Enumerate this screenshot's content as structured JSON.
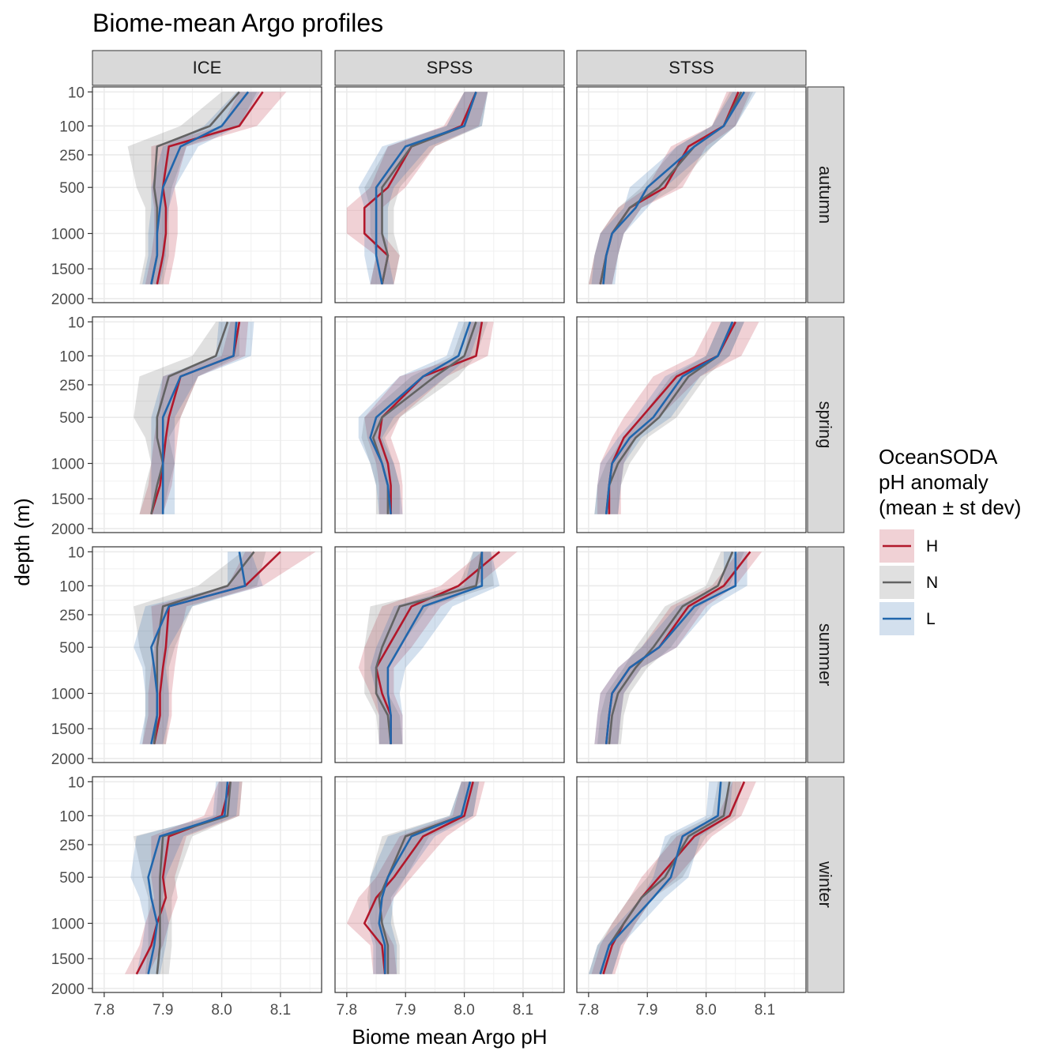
{
  "chart_data": {
    "type": "line",
    "title": "Biome-mean Argo profiles",
    "xlabel": "Biome mean Argo pH",
    "ylabel": "depth (m)",
    "xlim": [
      7.78,
      8.17
    ],
    "x_ticks": [
      7.8,
      7.9,
      8.0,
      8.1
    ],
    "x_tick_labels": [
      "7.8",
      "7.9",
      "8.0",
      "8.1"
    ],
    "y_scale": "sqrt",
    "y_reversed": true,
    "y_ticks": [
      10,
      100,
      250,
      500,
      1000,
      1500,
      2000
    ],
    "y_tick_labels": [
      "10",
      "100",
      "250",
      "500",
      "1000",
      "1500",
      "2000"
    ],
    "depths": [
      10,
      100,
      200,
      500,
      700,
      1000,
      1300,
      1750
    ],
    "columns": [
      "ICE",
      "SPSS",
      "STSS"
    ],
    "rows": [
      "autumn",
      "spring",
      "summer",
      "winter"
    ],
    "legend": {
      "title_lines": [
        "OceanSODA",
        "pH anomaly",
        "(mean ± st dev)"
      ],
      "entries": [
        {
          "name": "H",
          "color": "#b2182b"
        },
        {
          "name": "N",
          "color": "#636363"
        },
        {
          "name": "L",
          "color": "#2166ac"
        }
      ],
      "position": "right"
    },
    "panels": [
      {
        "column": "ICE",
        "row": "autumn",
        "series": [
          {
            "name": "H",
            "values": [
              8.07,
              8.03,
              7.91,
              7.9,
              7.905,
              7.905,
              7.9,
              7.89
            ],
            "sd": [
              0.04,
              0.03,
              0.03,
              0.02,
              0.02,
              0.02,
              0.02,
              0.02
            ]
          },
          {
            "name": "N",
            "values": [
              8.03,
              7.98,
              7.89,
              7.885,
              7.89,
              7.89,
              7.89,
              7.88
            ],
            "sd": [
              0.03,
              0.05,
              0.05,
              0.03,
              0.02,
              0.02,
              0.02,
              0.02
            ]
          },
          {
            "name": "L",
            "values": [
              8.045,
              8.0,
              7.93,
              7.9,
              7.895,
              7.89,
              7.89,
              7.88
            ],
            "sd": [
              0.02,
              0.03,
              0.03,
              0.02,
              0.015,
              0.015,
              0.015,
              0.015
            ]
          }
        ]
      },
      {
        "column": "SPSS",
        "row": "autumn",
        "series": [
          {
            "name": "H",
            "values": [
              8.02,
              7.995,
              7.91,
              7.87,
              7.83,
              7.83,
              7.87,
              7.86
            ],
            "sd": [
              0.02,
              0.03,
              0.04,
              0.03,
              0.03,
              0.03,
              0.02,
              0.02
            ]
          },
          {
            "name": "N",
            "values": [
              8.02,
              8.0,
              7.91,
              7.86,
              7.86,
              7.86,
              7.87,
              7.86
            ],
            "sd": [
              0.02,
              0.03,
              0.04,
              0.03,
              0.02,
              0.02,
              0.02,
              0.02
            ]
          },
          {
            "name": "L",
            "values": [
              8.02,
              8.0,
              7.9,
              7.85,
              7.85,
              7.85,
              7.85,
              7.86
            ],
            "sd": [
              0.02,
              0.03,
              0.04,
              0.03,
              0.02,
              0.02,
              0.02,
              0.02
            ]
          }
        ]
      },
      {
        "column": "STSS",
        "row": "autumn",
        "series": [
          {
            "name": "H",
            "values": [
              8.055,
              8.03,
              7.97,
              7.93,
              7.87,
              7.84,
              7.83,
              7.82
            ],
            "sd": [
              0.02,
              0.02,
              0.03,
              0.03,
              0.02,
              0.02,
              0.02,
              0.02
            ]
          },
          {
            "name": "N",
            "values": [
              8.06,
              8.03,
              7.98,
              7.92,
              7.87,
              7.84,
              7.83,
              7.82
            ],
            "sd": [
              0.02,
              0.02,
              0.03,
              0.03,
              0.02,
              0.02,
              0.02,
              0.02
            ]
          },
          {
            "name": "L",
            "values": [
              8.065,
              8.03,
              7.98,
              7.9,
              7.88,
              7.84,
              7.83,
              7.825
            ],
            "sd": [
              0.02,
              0.02,
              0.03,
              0.03,
              0.02,
              0.02,
              0.02,
              0.02
            ]
          }
        ]
      },
      {
        "column": "ICE",
        "row": "spring",
        "series": [
          {
            "name": "H",
            "values": [
              8.03,
              8.02,
              7.93,
              7.91,
              7.905,
              7.9,
              7.895,
              7.88
            ],
            "sd": [
              0.015,
              0.02,
              0.03,
              0.02,
              0.02,
              0.02,
              0.02,
              0.02
            ]
          },
          {
            "name": "N",
            "values": [
              8.01,
              7.99,
              7.91,
              7.89,
              7.89,
              7.9,
              7.89,
              7.88
            ],
            "sd": [
              0.02,
              0.04,
              0.05,
              0.04,
              0.02,
              0.02,
              0.02,
              0.02
            ]
          },
          {
            "name": "L",
            "values": [
              8.025,
              8.02,
              7.93,
              7.9,
              7.9,
              7.9,
              7.9,
              7.9
            ],
            "sd": [
              0.03,
              0.03,
              0.03,
              0.02,
              0.02,
              0.02,
              0.02,
              0.02
            ]
          }
        ]
      },
      {
        "column": "SPSS",
        "row": "spring",
        "series": [
          {
            "name": "H",
            "values": [
              8.03,
              8.02,
              7.93,
              7.86,
              7.855,
              7.87,
              7.875,
              7.875
            ],
            "sd": [
              0.02,
              0.02,
              0.04,
              0.03,
              0.02,
              0.02,
              0.02,
              0.02
            ]
          },
          {
            "name": "N",
            "values": [
              8.02,
              8.0,
              7.95,
              7.86,
              7.845,
              7.86,
              7.87,
              7.87
            ],
            "sd": [
              0.02,
              0.02,
              0.04,
              0.03,
              0.02,
              0.02,
              0.02,
              0.02
            ]
          },
          {
            "name": "L",
            "values": [
              8.01,
              7.99,
              7.93,
              7.85,
              7.84,
              7.86,
              7.87,
              7.875
            ],
            "sd": [
              0.02,
              0.02,
              0.04,
              0.03,
              0.02,
              0.02,
              0.02,
              0.02
            ]
          }
        ]
      },
      {
        "column": "STSS",
        "row": "spring",
        "series": [
          {
            "name": "H",
            "values": [
              8.05,
              8.02,
              7.95,
              7.89,
              7.86,
              7.84,
              7.835,
              7.835
            ],
            "sd": [
              0.04,
              0.04,
              0.04,
              0.03,
              0.02,
              0.02,
              0.02,
              0.02
            ]
          },
          {
            "name": "N",
            "values": [
              8.045,
              8.02,
              7.97,
              7.92,
              7.88,
              7.85,
              7.835,
              7.83
            ],
            "sd": [
              0.02,
              0.02,
              0.03,
              0.03,
              0.02,
              0.02,
              0.02,
              0.02
            ]
          },
          {
            "name": "L",
            "values": [
              8.045,
              8.02,
              7.96,
              7.91,
              7.87,
              7.84,
              7.835,
              7.83
            ],
            "sd": [
              0.02,
              0.02,
              0.03,
              0.03,
              0.02,
              0.02,
              0.02,
              0.02
            ]
          }
        ]
      },
      {
        "column": "ICE",
        "row": "summer",
        "series": [
          {
            "name": "H",
            "values": [
              8.1,
              8.04,
              7.91,
              7.905,
              7.9,
              7.895,
              7.895,
              7.885
            ],
            "sd": [
              0.06,
              0.03,
              0.03,
              0.02,
              0.02,
              0.02,
              0.02,
              0.02
            ]
          },
          {
            "name": "N",
            "values": [
              8.055,
              8.01,
              7.9,
              7.89,
              7.89,
              7.89,
              7.89,
              7.885
            ],
            "sd": [
              0.02,
              0.05,
              0.05,
              0.03,
              0.02,
              0.02,
              0.02,
              0.02
            ]
          },
          {
            "name": "L",
            "values": [
              8.03,
              8.04,
              7.91,
              7.88,
              7.885,
              7.89,
              7.89,
              7.88
            ],
            "sd": [
              0.02,
              0.03,
              0.04,
              0.03,
              0.02,
              0.02,
              0.02,
              0.02
            ]
          }
        ]
      },
      {
        "column": "SPSS",
        "row": "summer",
        "series": [
          {
            "name": "H",
            "values": [
              8.06,
              7.99,
              7.91,
              7.87,
              7.85,
              7.86,
              7.875,
              7.875
            ],
            "sd": [
              0.03,
              0.03,
              0.05,
              0.04,
              0.03,
              0.02,
              0.02,
              0.02
            ]
          },
          {
            "name": "N",
            "values": [
              8.03,
              8.02,
              7.89,
              7.86,
              7.85,
              7.85,
              7.87,
              7.875
            ],
            "sd": [
              0.015,
              0.03,
              0.05,
              0.03,
              0.02,
              0.02,
              0.02,
              0.02
            ]
          },
          {
            "name": "L",
            "values": [
              8.03,
              8.03,
              7.93,
              7.89,
              7.87,
              7.87,
              7.875,
              7.875
            ],
            "sd": [
              0.015,
              0.03,
              0.05,
              0.04,
              0.03,
              0.02,
              0.02,
              0.02
            ]
          }
        ]
      },
      {
        "column": "STSS",
        "row": "summer",
        "series": [
          {
            "name": "H",
            "values": [
              8.075,
              8.03,
              7.97,
              7.92,
              7.87,
              7.84,
              7.835,
              7.83
            ],
            "sd": [
              0.02,
              0.02,
              0.03,
              0.03,
              0.02,
              0.02,
              0.02,
              0.02
            ]
          },
          {
            "name": "N",
            "values": [
              8.045,
              8.02,
              7.96,
              7.91,
              7.88,
              7.85,
              7.84,
              7.835
            ],
            "sd": [
              0.02,
              0.02,
              0.03,
              0.03,
              0.02,
              0.02,
              0.02,
              0.02
            ]
          },
          {
            "name": "L",
            "values": [
              8.05,
              8.05,
              7.98,
              7.92,
              7.87,
              7.84,
              7.835,
              7.83
            ],
            "sd": [
              0.02,
              0.02,
              0.03,
              0.03,
              0.02,
              0.02,
              0.02,
              0.02
            ]
          }
        ]
      },
      {
        "column": "ICE",
        "row": "winter",
        "series": [
          {
            "name": "H",
            "values": [
              8.015,
              8.0,
              7.91,
              7.9,
              7.905,
              7.89,
              7.88,
              7.855
            ],
            "sd": [
              0.02,
              0.03,
              0.03,
              0.02,
              0.02,
              0.02,
              0.02,
              0.02
            ]
          },
          {
            "name": "N",
            "values": [
              8.015,
              8.01,
              7.9,
              7.895,
              7.895,
              7.895,
              7.895,
              7.89
            ],
            "sd": [
              0.02,
              0.02,
              0.05,
              0.03,
              0.02,
              0.02,
              0.02,
              0.02
            ]
          },
          {
            "name": "L",
            "values": [
              8.01,
              8.005,
              7.895,
              7.875,
              7.88,
              7.89,
              7.885,
              7.875
            ],
            "sd": [
              0.02,
              0.02,
              0.04,
              0.03,
              0.02,
              0.02,
              0.02,
              0.02
            ]
          }
        ]
      },
      {
        "column": "SPSS",
        "row": "winter",
        "series": [
          {
            "name": "H",
            "values": [
              8.015,
              8.0,
              7.93,
              7.88,
              7.85,
              7.83,
              7.86,
              7.865
            ],
            "sd": [
              0.02,
              0.02,
              0.04,
              0.03,
              0.03,
              0.03,
              0.02,
              0.02
            ]
          },
          {
            "name": "N",
            "values": [
              8.01,
              7.995,
              7.9,
              7.87,
              7.855,
              7.86,
              7.87,
              7.87
            ],
            "sd": [
              0.015,
              0.02,
              0.04,
              0.03,
              0.02,
              0.02,
              0.02,
              0.02
            ]
          },
          {
            "name": "L",
            "values": [
              8.01,
              7.995,
              7.91,
              7.87,
              7.86,
              7.855,
              7.865,
              7.865
            ],
            "sd": [
              0.015,
              0.02,
              0.04,
              0.03,
              0.02,
              0.02,
              0.02,
              0.02
            ]
          }
        ]
      },
      {
        "column": "STSS",
        "row": "winter",
        "series": [
          {
            "name": "H",
            "values": [
              8.065,
              8.04,
              7.98,
              7.92,
              7.89,
              7.86,
              7.84,
              7.825
            ],
            "sd": [
              0.02,
              0.02,
              0.03,
              0.03,
              0.02,
              0.02,
              0.02,
              0.02
            ]
          },
          {
            "name": "N",
            "values": [
              8.04,
              8.03,
              7.97,
              7.93,
              7.89,
              7.86,
              7.835,
              7.82
            ],
            "sd": [
              0.02,
              0.02,
              0.03,
              0.03,
              0.02,
              0.02,
              0.02,
              0.02
            ]
          },
          {
            "name": "L",
            "values": [
              8.025,
              8.02,
              7.96,
              7.94,
              7.91,
              7.87,
              7.835,
              7.82
            ],
            "sd": [
              0.02,
              0.02,
              0.03,
              0.03,
              0.02,
              0.02,
              0.02,
              0.02
            ]
          }
        ]
      }
    ]
  }
}
